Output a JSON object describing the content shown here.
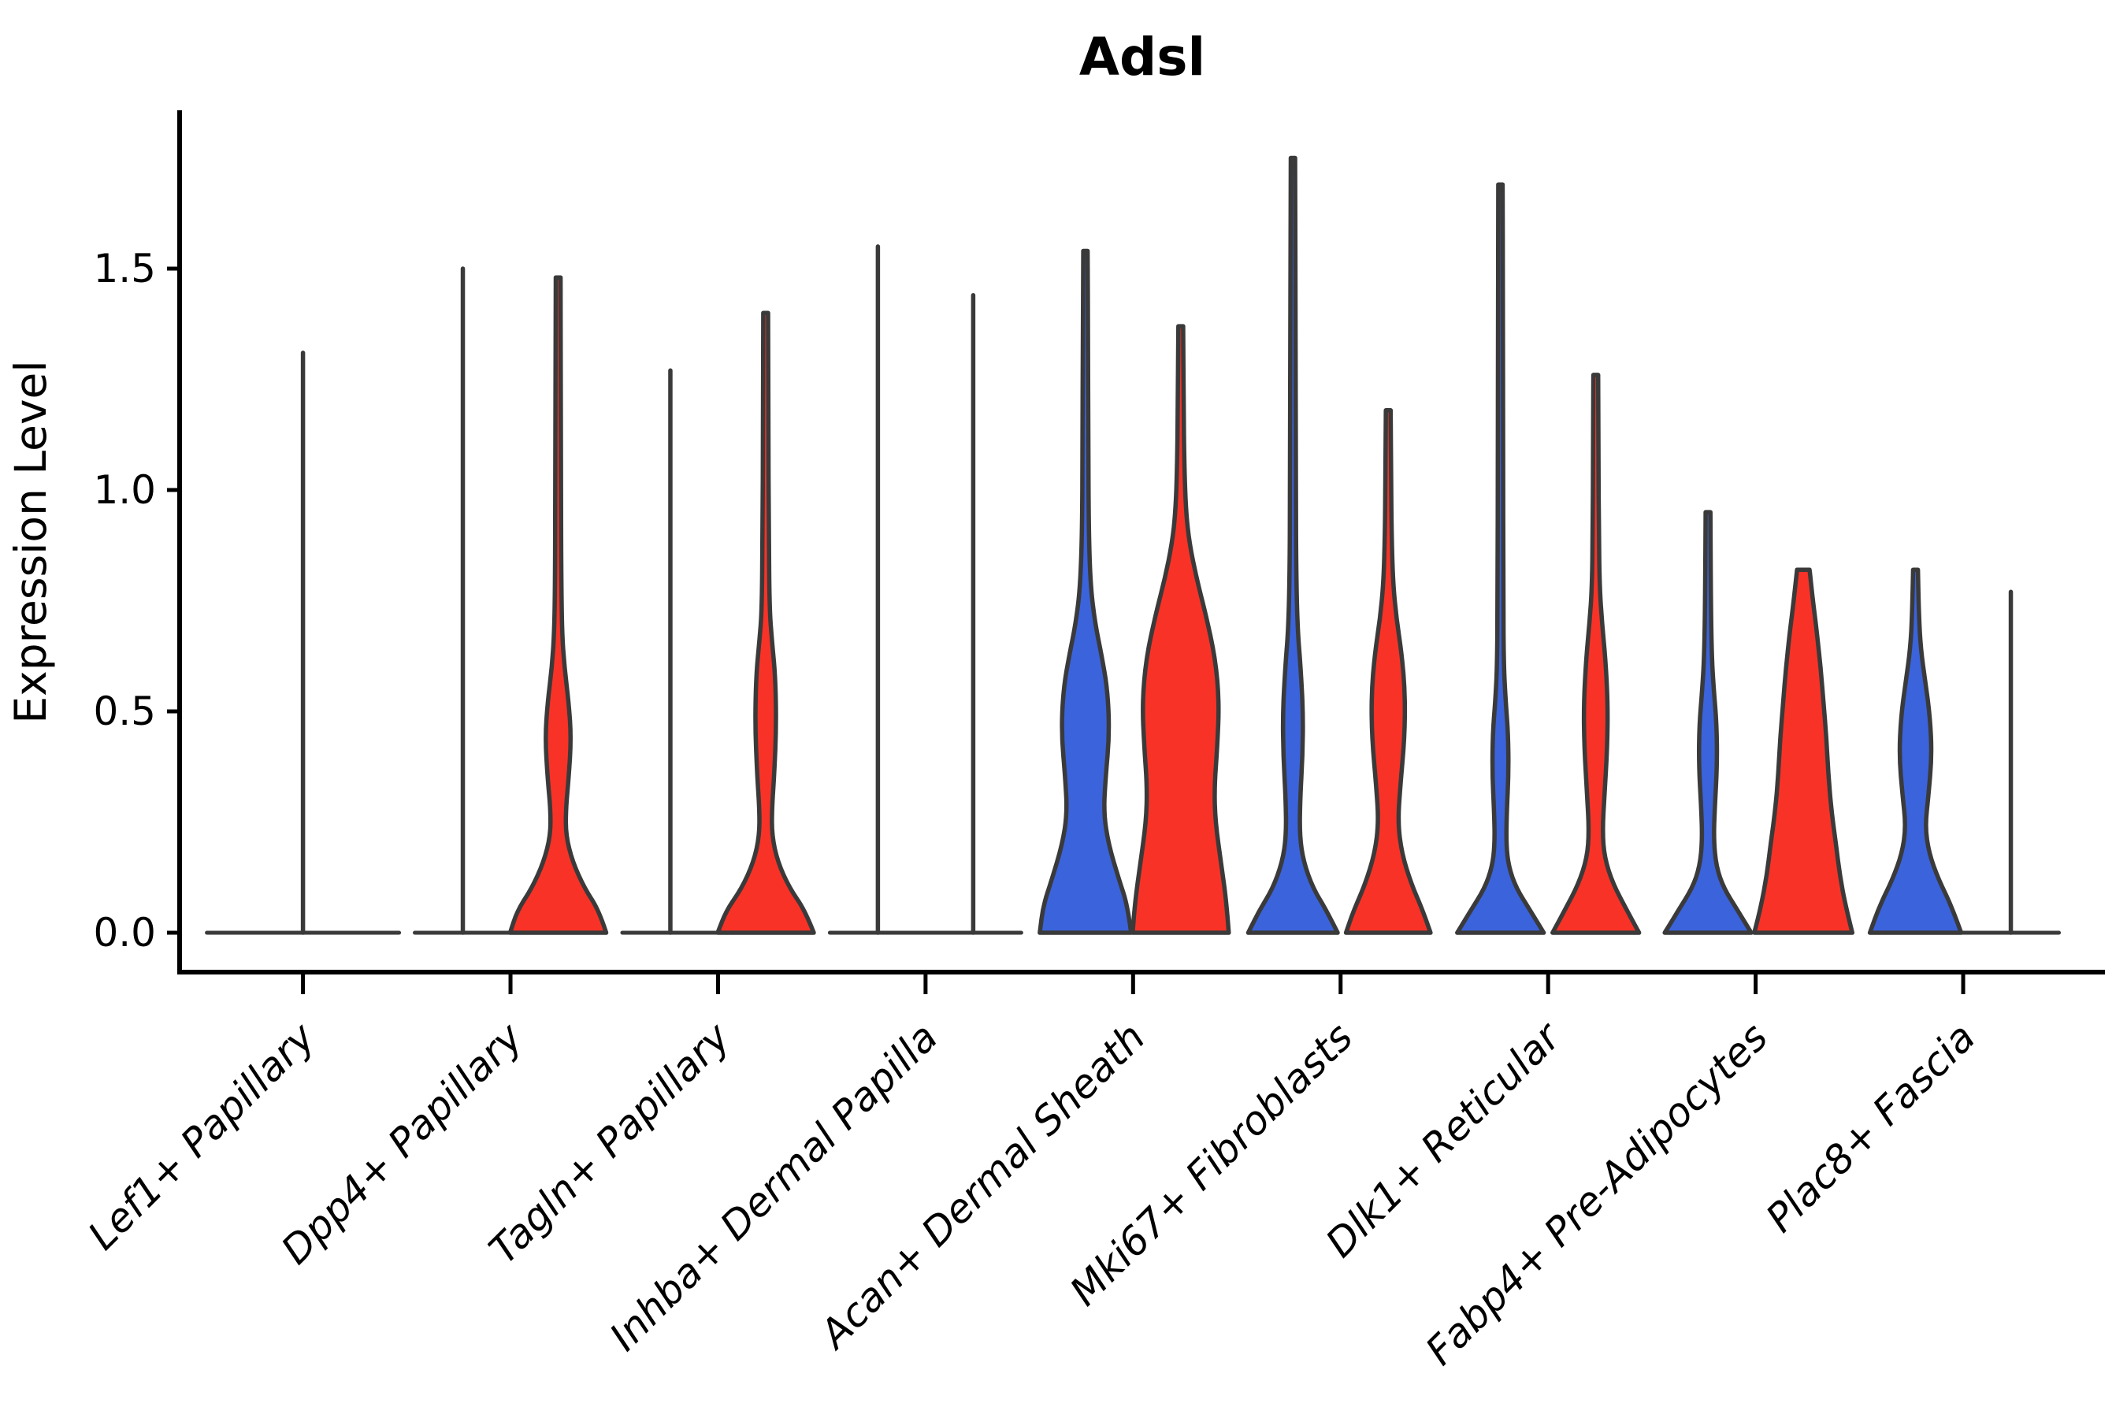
{
  "title": "Adsl",
  "axes": {
    "ylabel": "Expression Level",
    "ytick_labels": [
      "0.0",
      "0.5",
      "1.0",
      "1.5"
    ]
  },
  "colors": {
    "blue": "#3B63DB",
    "red": "#F93227",
    "outline": "#3A3A3A",
    "text": "#000000"
  },
  "chart_data": {
    "type": "violin",
    "title": "Adsl",
    "xlabel": "",
    "ylabel": "Expression Level",
    "yticks": [
      0.0,
      0.5,
      1.0,
      1.5
    ],
    "ylim": [
      -0.09,
      1.86
    ],
    "grid": false,
    "legend_position": "none",
    "series": [
      "blue",
      "red"
    ],
    "categories": [
      "Lef1+ Papillary",
      "Dpp4+ Papillary",
      "Tagln+ Papillary",
      "Inhba+ Dermal Papilla",
      "Acan+ Dermal Sheath",
      "Mki67+ Fibroblasts",
      "Dlk1+ Reticular",
      "Fabp4+ Pre-Adipocytes",
      "Plac8+ Fascia"
    ],
    "violins": [
      {
        "category": "Lef1+ Papillary",
        "halves": [
          {
            "color": "none",
            "position": "center",
            "kind": "spike",
            "max": 1.31,
            "width_scale": 2
          }
        ]
      },
      {
        "category": "Dpp4+ Papillary",
        "halves": [
          {
            "color": "blue",
            "position": "left",
            "kind": "spike",
            "max": 1.5,
            "width_scale": 1
          },
          {
            "color": "red",
            "position": "right",
            "kind": "density",
            "max": 1.48,
            "flat_top": false,
            "profile": [
              [
                0,
                1.0
              ],
              [
                0.05,
                0.85
              ],
              [
                0.1,
                0.55
              ],
              [
                0.16,
                0.3
              ],
              [
                0.22,
                0.16
              ],
              [
                0.28,
                0.16
              ],
              [
                0.35,
                0.22
              ],
              [
                0.44,
                0.27
              ],
              [
                0.52,
                0.22
              ],
              [
                0.6,
                0.13
              ],
              [
                0.68,
                0.08
              ],
              [
                0.8,
                0.065
              ],
              [
                1.0,
                0.06
              ],
              [
                1.25,
                0.055
              ],
              [
                1.48,
                0.05
              ]
            ]
          }
        ]
      },
      {
        "category": "Tagln+ Papillary",
        "halves": [
          {
            "color": "blue",
            "position": "left",
            "kind": "spike",
            "max": 1.27,
            "width_scale": 1
          },
          {
            "color": "red",
            "position": "right",
            "kind": "density",
            "max": 1.4,
            "flat_top": false,
            "profile": [
              [
                0,
                1.0
              ],
              [
                0.05,
                0.82
              ],
              [
                0.1,
                0.5
              ],
              [
                0.16,
                0.25
              ],
              [
                0.22,
                0.13
              ],
              [
                0.28,
                0.13
              ],
              [
                0.36,
                0.18
              ],
              [
                0.47,
                0.22
              ],
              [
                0.58,
                0.2
              ],
              [
                0.66,
                0.13
              ],
              [
                0.73,
                0.08
              ],
              [
                0.9,
                0.065
              ],
              [
                1.15,
                0.055
              ],
              [
                1.4,
                0.05
              ]
            ]
          }
        ]
      },
      {
        "category": "Inhba+ Dermal Papilla",
        "halves": [
          {
            "color": "blue",
            "position": "left",
            "kind": "spike",
            "max": 1.55,
            "width_scale": 1
          },
          {
            "color": "red",
            "position": "right",
            "kind": "spike",
            "max": 1.44,
            "width_scale": 1
          }
        ]
      },
      {
        "category": "Acan+ Dermal Sheath",
        "halves": [
          {
            "color": "blue",
            "position": "left",
            "kind": "density",
            "max": 1.54,
            "flat_top": false,
            "profile": [
              [
                0,
                0.95
              ],
              [
                0.06,
                0.88
              ],
              [
                0.12,
                0.7
              ],
              [
                0.2,
                0.48
              ],
              [
                0.27,
                0.38
              ],
              [
                0.35,
                0.42
              ],
              [
                0.45,
                0.5
              ],
              [
                0.55,
                0.46
              ],
              [
                0.63,
                0.33
              ],
              [
                0.7,
                0.2
              ],
              [
                0.78,
                0.11
              ],
              [
                0.9,
                0.07
              ],
              [
                1.1,
                0.06
              ],
              [
                1.35,
                0.055
              ],
              [
                1.54,
                0.045
              ]
            ]
          },
          {
            "color": "red",
            "position": "right",
            "kind": "density",
            "max": 1.37,
            "flat_top": false,
            "profile": [
              [
                0,
                1.0
              ],
              [
                0.07,
                0.95
              ],
              [
                0.15,
                0.85
              ],
              [
                0.25,
                0.72
              ],
              [
                0.33,
                0.7
              ],
              [
                0.42,
                0.76
              ],
              [
                0.52,
                0.8
              ],
              [
                0.62,
                0.72
              ],
              [
                0.72,
                0.52
              ],
              [
                0.8,
                0.33
              ],
              [
                0.88,
                0.18
              ],
              [
                0.95,
                0.11
              ],
              [
                1.05,
                0.075
              ],
              [
                1.2,
                0.06
              ],
              [
                1.37,
                0.05
              ]
            ]
          }
        ]
      },
      {
        "category": "Mki67+ Fibroblasts",
        "halves": [
          {
            "color": "blue",
            "position": "left",
            "kind": "density",
            "max": 1.75,
            "flat_top": false,
            "profile": [
              [
                0,
                0.93
              ],
              [
                0.05,
                0.7
              ],
              [
                0.1,
                0.42
              ],
              [
                0.16,
                0.22
              ],
              [
                0.22,
                0.14
              ],
              [
                0.3,
                0.15
              ],
              [
                0.4,
                0.2
              ],
              [
                0.5,
                0.21
              ],
              [
                0.6,
                0.16
              ],
              [
                0.68,
                0.1
              ],
              [
                0.8,
                0.07
              ],
              [
                1.0,
                0.06
              ],
              [
                1.4,
                0.055
              ],
              [
                1.75,
                0.045
              ]
            ]
          },
          {
            "color": "red",
            "position": "right",
            "kind": "density",
            "max": 1.18,
            "flat_top": false,
            "profile": [
              [
                0,
                0.88
              ],
              [
                0.05,
                0.72
              ],
              [
                0.11,
                0.48
              ],
              [
                0.18,
                0.28
              ],
              [
                0.25,
                0.2
              ],
              [
                0.33,
                0.25
              ],
              [
                0.44,
                0.34
              ],
              [
                0.54,
                0.35
              ],
              [
                0.63,
                0.28
              ],
              [
                0.71,
                0.17
              ],
              [
                0.79,
                0.1
              ],
              [
                0.9,
                0.07
              ],
              [
                1.02,
                0.06
              ],
              [
                1.18,
                0.05
              ]
            ]
          }
        ]
      },
      {
        "category": "Dlk1+ Reticular",
        "halves": [
          {
            "color": "blue",
            "position": "left",
            "kind": "density",
            "max": 1.69,
            "flat_top": false,
            "profile": [
              [
                0,
                0.9
              ],
              [
                0.05,
                0.62
              ],
              [
                0.1,
                0.33
              ],
              [
                0.15,
                0.17
              ],
              [
                0.2,
                0.12
              ],
              [
                0.27,
                0.13
              ],
              [
                0.36,
                0.17
              ],
              [
                0.45,
                0.16
              ],
              [
                0.52,
                0.11
              ],
              [
                0.6,
                0.07
              ],
              [
                0.75,
                0.06
              ],
              [
                1.1,
                0.055
              ],
              [
                1.45,
                0.05
              ],
              [
                1.69,
                0.045
              ]
            ]
          },
          {
            "color": "red",
            "position": "right",
            "kind": "density",
            "max": 1.26,
            "flat_top": false,
            "profile": [
              [
                0,
                0.9
              ],
              [
                0.05,
                0.65
              ],
              [
                0.11,
                0.36
              ],
              [
                0.17,
                0.18
              ],
              [
                0.23,
                0.14
              ],
              [
                0.31,
                0.18
              ],
              [
                0.42,
                0.24
              ],
              [
                0.52,
                0.25
              ],
              [
                0.62,
                0.2
              ],
              [
                0.7,
                0.13
              ],
              [
                0.78,
                0.08
              ],
              [
                0.9,
                0.065
              ],
              [
                1.08,
                0.055
              ],
              [
                1.26,
                0.05
              ]
            ]
          }
        ]
      },
      {
        "category": "Fabp4+ Pre-Adipocytes",
        "halves": [
          {
            "color": "blue",
            "position": "left",
            "kind": "density",
            "max": 0.95,
            "flat_top": false,
            "profile": [
              [
                0,
                0.9
              ],
              [
                0.05,
                0.62
              ],
              [
                0.1,
                0.33
              ],
              [
                0.15,
                0.17
              ],
              [
                0.21,
                0.12
              ],
              [
                0.28,
                0.14
              ],
              [
                0.38,
                0.19
              ],
              [
                0.47,
                0.18
              ],
              [
                0.55,
                0.12
              ],
              [
                0.62,
                0.08
              ],
              [
                0.74,
                0.06
              ],
              [
                0.95,
                0.05
              ]
            ]
          },
          {
            "color": "red",
            "position": "right",
            "kind": "density",
            "max": 0.82,
            "flat_top": true,
            "profile": [
              [
                0,
                1.02
              ],
              [
                0.06,
                0.88
              ],
              [
                0.13,
                0.76
              ],
              [
                0.2,
                0.68
              ],
              [
                0.28,
                0.58
              ],
              [
                0.36,
                0.52
              ],
              [
                0.44,
                0.48
              ],
              [
                0.52,
                0.42
              ],
              [
                0.6,
                0.36
              ],
              [
                0.68,
                0.28
              ],
              [
                0.75,
                0.2
              ],
              [
                0.8,
                0.15
              ],
              [
                0.82,
                0.13
              ]
            ]
          }
        ]
      },
      {
        "category": "Plac8+ Fascia",
        "halves": [
          {
            "color": "blue",
            "position": "left",
            "kind": "density",
            "max": 0.82,
            "flat_top": false,
            "profile": [
              [
                0,
                0.95
              ],
              [
                0.06,
                0.75
              ],
              [
                0.12,
                0.48
              ],
              [
                0.18,
                0.28
              ],
              [
                0.24,
                0.2
              ],
              [
                0.31,
                0.27
              ],
              [
                0.4,
                0.34
              ],
              [
                0.49,
                0.3
              ],
              [
                0.57,
                0.2
              ],
              [
                0.64,
                0.11
              ],
              [
                0.72,
                0.07
              ],
              [
                0.82,
                0.05
              ]
            ]
          },
          {
            "color": "red",
            "position": "right",
            "kind": "spike",
            "max": 0.77,
            "width_scale": 1
          }
        ]
      }
    ]
  }
}
